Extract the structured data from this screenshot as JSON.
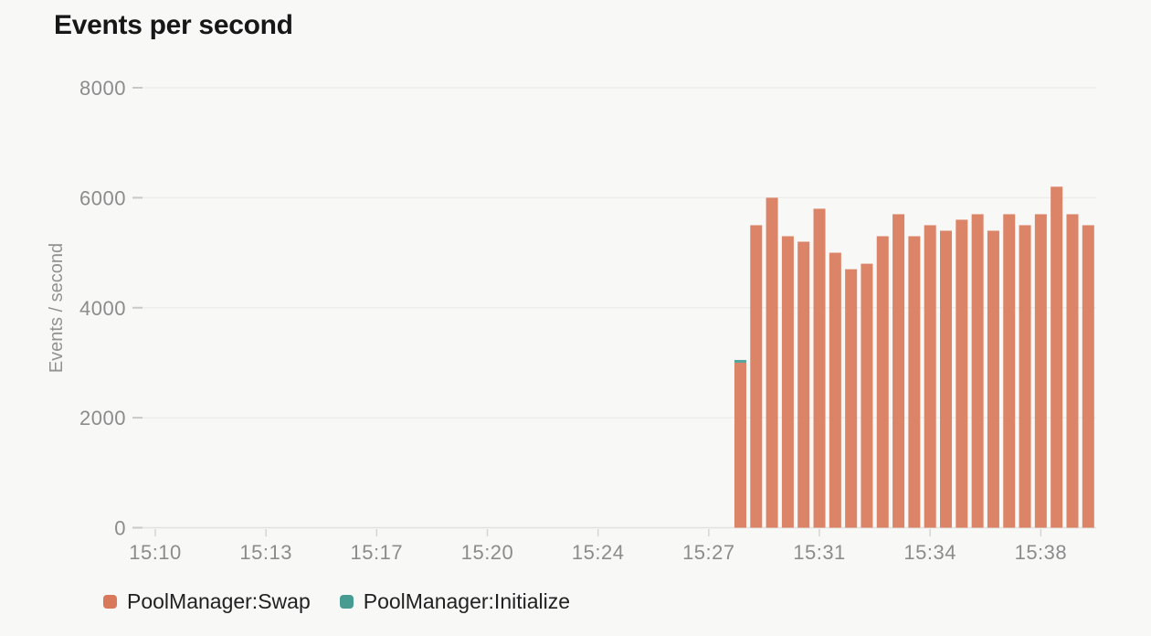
{
  "title": "Events per second",
  "legend": [
    {
      "label": "PoolManager:Swap",
      "color": "#d9795b"
    },
    {
      "label": "PoolManager:Initialize",
      "color": "#479c92"
    }
  ],
  "chart_data": {
    "type": "bar",
    "stacked": true,
    "title": "Events per second",
    "xlabel": "",
    "ylabel": "Events / second",
    "ylim": [
      0,
      8000
    ],
    "y_ticks": [
      0,
      2000,
      4000,
      6000,
      8000
    ],
    "grid": "horizontal",
    "legend_position": "bottom-left",
    "x_ticks": [
      {
        "t": "15:10:00",
        "label": "15:10"
      },
      {
        "t": "15:13:30",
        "label": "15:13"
      },
      {
        "t": "15:17:00",
        "label": "15:17"
      },
      {
        "t": "15:20:30",
        "label": "15:20"
      },
      {
        "t": "15:24:00",
        "label": "15:24"
      },
      {
        "t": "15:27:30",
        "label": "15:27"
      },
      {
        "t": "15:31:00",
        "label": "15:31"
      },
      {
        "t": "15:34:30",
        "label": "15:34"
      },
      {
        "t": "15:38:00",
        "label": "15:38"
      }
    ],
    "x_range": [
      "15:09:10",
      "15:39:45"
    ],
    "bucket_seconds": 30,
    "x": [
      "15:28:30",
      "15:29:00",
      "15:29:30",
      "15:30:00",
      "15:30:30",
      "15:31:00",
      "15:31:30",
      "15:32:00",
      "15:32:30",
      "15:33:00",
      "15:33:30",
      "15:34:00",
      "15:34:30",
      "15:35:00",
      "15:35:30",
      "15:36:00",
      "15:36:30",
      "15:37:00",
      "15:37:30",
      "15:38:00",
      "15:38:30",
      "15:39:00",
      "15:39:30"
    ],
    "series": [
      {
        "name": "PoolManager:Swap",
        "color": "#d9795b",
        "values": [
          3000,
          5500,
          6000,
          5300,
          5200,
          5800,
          5000,
          4700,
          4800,
          5300,
          5700,
          5300,
          5500,
          5400,
          5600,
          5700,
          5400,
          5700,
          5500,
          5700,
          6200,
          5700,
          5500
        ]
      },
      {
        "name": "PoolManager:Initialize",
        "color": "#479c92",
        "values": [
          50,
          0,
          0,
          0,
          0,
          0,
          0,
          0,
          0,
          0,
          0,
          0,
          0,
          0,
          0,
          0,
          0,
          0,
          0,
          0,
          0,
          0,
          0
        ]
      }
    ]
  }
}
